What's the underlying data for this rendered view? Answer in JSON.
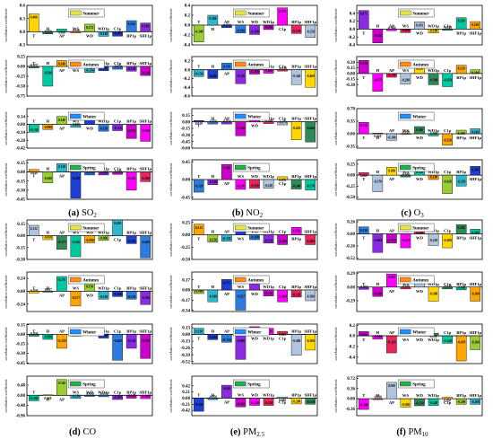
{
  "colors": {
    "palette": [
      "#ffd700",
      "#2e8b57",
      "#00c8a0",
      "#ffa500",
      "#9acd32",
      "#2db7c8",
      "#1e3fd6",
      "#2e7be0",
      "#8a2be2",
      "#cc00cc",
      "#ff00ff",
      "#e8255c",
      "#b0c4de"
    ],
    "season": {
      "Summer": "#e5e543",
      "Autumn": "#ff8c1a",
      "Winter": "#1e90ff",
      "Spring": "#22b14c"
    }
  },
  "labels": {
    "ylabel": "correlation coefficient"
  },
  "panel_captions": [
    {
      "letter": "(a)",
      "name": "SO",
      "sub": "2"
    },
    {
      "letter": "(b)",
      "name": "NO",
      "sub": "2"
    },
    {
      "letter": "(c)",
      "name": "O",
      "sub": "3"
    },
    {
      "letter": "(d)",
      "name": "CO",
      "sub": ""
    },
    {
      "letter": "(e)",
      "name": "PM",
      "sub": "2.5"
    },
    {
      "letter": "(f)",
      "name": "PM",
      "sub": "10"
    }
  ],
  "chart_data": [
    {
      "type": "bar",
      "pollutant": "SO2",
      "column": 0,
      "row": 0,
      "season": "Summer",
      "categories": [
        "T",
        "H",
        "AP",
        "WS",
        "WD",
        "WD1p",
        "C1p",
        "BP1p",
        "SHF1p"
      ],
      "values": [
        0.406,
        -0.05,
        0.06,
        -0.03,
        0.172,
        -0.105,
        -0.1,
        0.253,
        0.199
      ],
      "ylim": [
        -0.3,
        0.6
      ],
      "ticks": [
        "0.6",
        "0.3",
        "0.0",
        "-0.3"
      ]
    },
    {
      "type": "bar",
      "pollutant": "SO2",
      "column": 0,
      "row": 1,
      "season": "Autumn",
      "categories": [
        "T",
        "H",
        "AP",
        "WS",
        "WD",
        "WD1p",
        "C1p",
        "BP1p",
        "SHF1p"
      ],
      "values": [
        -0.037,
        -0.5,
        0.149,
        0.06,
        -0.154,
        -0.11,
        -0.07,
        -0.12,
        -0.23
      ],
      "ylim": [
        -0.75,
        0.25
      ],
      "ticks": [
        "0.25",
        "0.00",
        "-0.25",
        "-0.50",
        "-0.75"
      ]
    },
    {
      "type": "bar",
      "pollutant": "SO2",
      "column": 0,
      "row": 2,
      "season": "Winter",
      "categories": [
        "T",
        "H",
        "AP",
        "WS",
        "WD",
        "WD1p",
        "C1p",
        "BP1p",
        "SHF1p"
      ],
      "values": [
        -0.138,
        -0.09,
        0.14,
        -0.05,
        0.2,
        -0.12,
        -0.11,
        -0.25,
        -0.3
      ],
      "ylim": [
        -0.42,
        0.28
      ],
      "ticks": [
        "0.14",
        "0.00",
        "-0.14",
        "-0.28",
        "-0.42"
      ]
    },
    {
      "type": "bar",
      "pollutant": "SO2",
      "column": 0,
      "row": 3,
      "season": "Spring",
      "categories": [
        "T",
        "H",
        "AP",
        "WS",
        "WD",
        "WD1p",
        "C1p",
        "BP1p",
        "SHF1p"
      ],
      "values": [
        0.04,
        -0.18,
        0.138,
        -0.43,
        -0.05,
        -0.05,
        -0.04,
        -0.3,
        -0.16
      ],
      "ylim": [
        -0.45,
        0.2
      ],
      "ticks": [
        "0.15",
        "0.00",
        "-0.15",
        "-0.30",
        "-0.45"
      ]
    },
    {
      "type": "bar",
      "pollutant": "NO2",
      "column": 1,
      "row": 0,
      "season": "Summer",
      "categories": [
        "T",
        "H",
        "AP",
        "WS",
        "WD",
        "WD1p",
        "C1p",
        "BP1p",
        "SHF1p"
      ],
      "values": [
        -0.34,
        0.2,
        -0.05,
        -0.16,
        -0.19,
        -0.09,
        0.35,
        -0.17,
        -0.25
      ],
      "ylim": [
        -0.4,
        0.4
      ],
      "ticks": [
        "0.4",
        "0.2",
        "0.0",
        "-0.2",
        "-0.4"
      ]
    },
    {
      "type": "bar",
      "pollutant": "NO2",
      "column": 1,
      "row": 1,
      "season": "Autumn",
      "categories": [
        "T",
        "H",
        "AP",
        "WS",
        "WD",
        "WD1p",
        "C1p",
        "BP1p",
        "SHF1p"
      ],
      "values": [
        -0.154,
        -0.2,
        0.15,
        -0.32,
        -0.1,
        -0.08,
        -0.03,
        -0.34,
        -0.4
      ],
      "ylim": [
        -0.6,
        0.3
      ],
      "ticks": [
        "0.2",
        "0.0",
        "-0.2",
        "-0.4",
        "-0.6"
      ]
    },
    {
      "type": "bar",
      "pollutant": "NO2",
      "column": 1,
      "row": 2,
      "season": "Winter",
      "categories": [
        "T",
        "H",
        "AP",
        "WS",
        "WD",
        "WD1p",
        "C1p",
        "BP1p",
        "SHF1p"
      ],
      "values": [
        0.03,
        -0.05,
        -0.05,
        -0.32,
        0.18,
        -0.04,
        -0.07,
        -0.41,
        -0.46
      ],
      "ylim": [
        -0.6,
        0.3
      ],
      "ticks": [
        "0.15",
        "0.00",
        "-0.15",
        "-0.30",
        "-0.45",
        "-0.60"
      ]
    },
    {
      "type": "bar",
      "pollutant": "NO2",
      "column": 1,
      "row": 3,
      "season": "Spring",
      "categories": [
        "T",
        "H",
        "AP",
        "WS",
        "WD",
        "WD1p",
        "C1p",
        "BP1p",
        "SHF1p"
      ],
      "values": [
        -0.32,
        -0.13,
        0.38,
        -0.25,
        -0.22,
        -0.22,
        0.07,
        -0.24,
        -0.27
      ],
      "ylim": [
        -0.5,
        0.5
      ],
      "ticks": [
        "0.45",
        "0.00",
        "-0.45"
      ]
    },
    {
      "type": "bar",
      "pollutant": "O3",
      "column": 2,
      "row": 0,
      "season": "Summer",
      "categories": [
        "T",
        "H",
        "AP",
        "WS",
        "WD",
        "WD1p",
        "C1p",
        "BP1p",
        "SHF1p"
      ],
      "values": [
        0.471,
        -0.35,
        -0.04,
        -0.09,
        0.183,
        -0.1,
        -0.03,
        0.29,
        0.19
      ],
      "ylim": [
        -0.4,
        0.6
      ],
      "ticks": [
        "0.4",
        "0.2",
        "0.0",
        "-0.2",
        "-0.4"
      ]
    },
    {
      "type": "bar",
      "pollutant": "O3",
      "column": 2,
      "row": 1,
      "season": "Autumn",
      "categories": [
        "T",
        "H",
        "AP",
        "WS",
        "WD",
        "WD1p",
        "C1p",
        "BP1p",
        "SHF1p"
      ],
      "values": [
        0.35,
        -0.475,
        -0.1,
        -0.28,
        0.22,
        -0.3,
        -0.35,
        0.22,
        0.1
      ],
      "ylim": [
        -0.6,
        0.45
      ],
      "ticks": [
        "0.30",
        "0.15",
        "0.00",
        "-0.15",
        "-0.30"
      ]
    },
    {
      "type": "bar",
      "pollutant": "O3",
      "column": 2,
      "row": 2,
      "season": "Winter",
      "categories": [
        "T",
        "H",
        "AP",
        "WS",
        "WD",
        "WD1p",
        "C1p",
        "BP1p",
        "SHF1p"
      ],
      "values": [
        0.32,
        0.02,
        -0.18,
        -0.02,
        0.2,
        -0.06,
        -0.32,
        0.1,
        0.14
      ],
      "ylim": [
        -0.4,
        0.7
      ],
      "ticks": [
        "0.70",
        "0.35",
        "0.00",
        "-0.35"
      ]
    },
    {
      "type": "bar",
      "pollutant": "O3",
      "column": 2,
      "row": 3,
      "season": "Spring",
      "categories": [
        "T",
        "H",
        "AP",
        "WS",
        "WD",
        "WD1p",
        "C1p",
        "BP1p",
        "SHF1p"
      ],
      "values": [
        0.06,
        -0.378,
        0.18,
        -0.04,
        0.15,
        -0.1,
        -0.42,
        -0.25,
        0.2
      ],
      "ylim": [
        -0.55,
        0.35
      ],
      "ticks": [
        "0.25",
        "0.00",
        "-0.25",
        "-0.50"
      ]
    },
    {
      "type": "bar",
      "pollutant": "CO",
      "column": 0,
      "row": 4,
      "season": "Summer",
      "categories": [
        "T",
        "H",
        "AP",
        "WS",
        "WD",
        "WD1p",
        "C1p",
        "BP1p",
        "SHF1p"
      ],
      "values": [
        0.132,
        -0.05,
        -0.173,
        -0.266,
        -0.09,
        -0.06,
        0.2,
        -0.1,
        -0.28
      ],
      "ylim": [
        -0.3,
        0.2
      ],
      "ticks": [
        "0.15",
        "0.00",
        "-0.15",
        "-0.30"
      ]
    },
    {
      "type": "bar",
      "pollutant": "CO",
      "column": 0,
      "row": 5,
      "season": "Autumn",
      "categories": [
        "T",
        "H",
        "AP",
        "WS",
        "WD",
        "WD1p",
        "C1p",
        "BP1p",
        "SHF1p"
      ],
      "values": [
        -0.036,
        -0.017,
        0.276,
        -0.277,
        0.15,
        -0.15,
        -0.1,
        -0.15,
        -0.25
      ],
      "ylim": [
        -0.38,
        0.36
      ],
      "ticks": [
        "0.24",
        "0.00",
        "-0.24"
      ]
    },
    {
      "type": "bar",
      "pollutant": "CO",
      "column": 0,
      "row": 6,
      "season": "Winter",
      "categories": [
        "T",
        "H",
        "AP",
        "WS",
        "WD",
        "WD1p",
        "C1p",
        "BP1p",
        "SHF1p"
      ],
      "values": [
        -0.03,
        -0.08,
        -0.22,
        -0.03,
        -0.02,
        -0.06,
        -0.408,
        -0.22,
        -0.38
      ],
      "ylim": [
        -0.46,
        0.16
      ],
      "ticks": [
        "0.15",
        "0.00",
        "-0.15",
        "-0.30",
        "-0.45"
      ]
    },
    {
      "type": "bar",
      "pollutant": "CO",
      "column": 0,
      "row": 7,
      "season": "Spring",
      "categories": [
        "T",
        "H",
        "AP",
        "WS",
        "WD",
        "WD1p",
        "C1p",
        "BP1p",
        "SHF1p"
      ],
      "values": [
        -0.26,
        0.02,
        0.74,
        -0.15,
        -0.05,
        -0.07,
        -0.2,
        -0.14,
        -0.16
      ],
      "ylim": [
        -0.96,
        0.9
      ],
      "ticks": [
        "0.48",
        "0.00",
        "-0.48",
        "-0.96"
      ]
    },
    {
      "type": "bar",
      "pollutant": "PM2.5",
      "column": 1,
      "row": 4,
      "season": "Summer",
      "categories": [
        "T",
        "H",
        "AP",
        "WS",
        "WD",
        "WD1p",
        "C1p",
        "BP1p",
        "SHF1p"
      ],
      "values": [
        0.213,
        -0.15,
        -0.13,
        0.2,
        -0.1,
        -0.17,
        -0.2,
        0.15,
        -0.2
      ],
      "ylim": [
        -0.5,
        0.3
      ],
      "ticks": [
        "0.25",
        "0.00",
        "-0.25",
        "-0.50"
      ]
    },
    {
      "type": "bar",
      "pollutant": "PM2.5",
      "column": 1,
      "row": 5,
      "season": "Autumn",
      "categories": [
        "T",
        "H",
        "AP",
        "WS",
        "WD",
        "WD1p",
        "C1p",
        "BP1p",
        "SHF1p"
      ],
      "values": [
        -0.06,
        -0.198,
        0.175,
        -0.337,
        0.172,
        -0.1,
        -0.2,
        -0.12,
        -0.18
      ],
      "ylim": [
        -0.36,
        0.3
      ],
      "ticks": [
        "0.17",
        "0.00",
        "-0.17",
        "-0.34"
      ]
    },
    {
      "type": "bar",
      "pollutant": "PM2.5",
      "column": 1,
      "row": 6,
      "season": "Winter",
      "categories": [
        "T",
        "H",
        "AP",
        "WS",
        "WD",
        "WD1p",
        "C1p",
        "BP1p",
        "SHF1p"
      ],
      "values": [
        0.12,
        -0.1,
        -0.15,
        -0.48,
        0.15,
        0.12,
        0.06,
        -0.4,
        -0.3
      ],
      "ylim": [
        -0.56,
        0.2
      ],
      "ticks": [
        "0.13",
        "0.00",
        "-0.13",
        "-0.26",
        "-0.39",
        "-0.52"
      ]
    },
    {
      "type": "bar",
      "pollutant": "PM2.5",
      "column": 1,
      "row": 7,
      "season": "Spring",
      "categories": [
        "T",
        "H",
        "AP",
        "WS",
        "WD",
        "WD1p",
        "C1p",
        "BP1p",
        "SHF1p"
      ],
      "values": [
        -0.45,
        -0.05,
        0.44,
        -0.3,
        -0.25,
        -0.25,
        0.04,
        -0.2,
        -0.21
      ],
      "ylim": [
        -0.6,
        0.75
      ],
      "ticks": [
        "0.42",
        "0.21",
        "0.00",
        "-0.21",
        "-0.42"
      ]
    },
    {
      "type": "bar",
      "pollutant": "PM10",
      "column": 2,
      "row": 4,
      "season": "Summer",
      "categories": [
        "T",
        "H",
        "AP",
        "WS",
        "WD",
        "WD1p",
        "C1p",
        "BP1p",
        "SHF1p"
      ],
      "values": [
        0.15,
        -0.4,
        -0.2,
        -0.3,
        0.1,
        -0.25,
        -0.3,
        0.2,
        0.1
      ],
      "ylim": [
        -0.55,
        0.3
      ],
      "ticks": [
        "0.26",
        "0.00",
        "-0.26",
        "-0.52"
      ]
    },
    {
      "type": "bar",
      "pollutant": "PM10",
      "column": 2,
      "row": 5,
      "season": "Autumn",
      "categories": [
        "T",
        "H",
        "AP",
        "WS",
        "WD",
        "WD1p",
        "C1p",
        "BP1p",
        "SHF1p"
      ],
      "values": [
        -0.05,
        -0.2,
        0.28,
        -0.04,
        0.22,
        -0.3,
        -0.04,
        -0.06,
        -0.3
      ],
      "ylim": [
        -0.52,
        0.32
      ],
      "ticks": [
        "0.29",
        "0.00",
        "-0.29"
      ]
    },
    {
      "type": "bar",
      "pollutant": "PM10",
      "column": 2,
      "row": 6,
      "season": "Winter",
      "categories": [
        "T",
        "H",
        "AP",
        "WS",
        "WD",
        "WD1p",
        "C1p",
        "BP1p",
        "SHF1p"
      ],
      "values": [
        0.08,
        -0.06,
        -0.32,
        0.1,
        0.12,
        0.05,
        -0.14,
        -0.47,
        -0.26
      ],
      "ylim": [
        -0.52,
        0.22
      ],
      "ticks": [
        "0.2",
        "0.0",
        "-0.2",
        "-0.4"
      ]
    },
    {
      "type": "bar",
      "pollutant": "PM10",
      "column": 2,
      "row": 7,
      "season": "Spring",
      "categories": [
        "T",
        "H",
        "AP",
        "WS",
        "WD",
        "WD1p",
        "C1p",
        "BP1p",
        "SHF1p"
      ],
      "values": [
        -0.38,
        -0.03,
        0.58,
        -0.3,
        -0.25,
        -0.24,
        0.05,
        -0.2,
        -0.2
      ],
      "ylim": [
        -0.6,
        0.8
      ],
      "ticks": [
        "0.72",
        "0.36",
        "0.00",
        "-0.36"
      ]
    }
  ]
}
